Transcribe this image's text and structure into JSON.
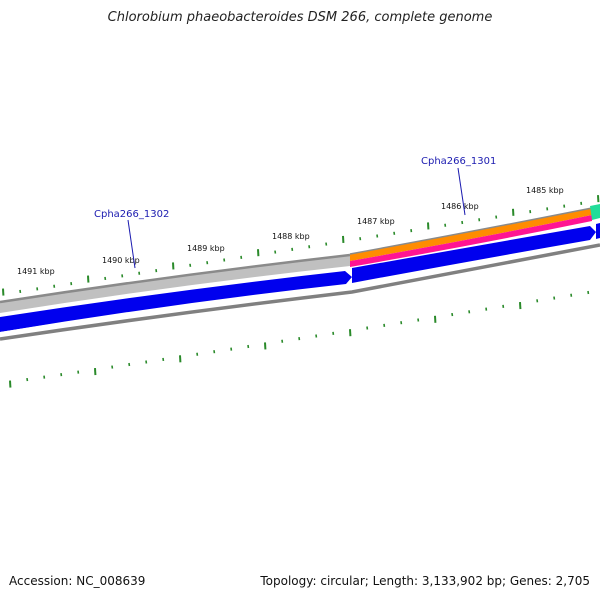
{
  "title": "Chlorobium phaeobacteroides DSM 266, complete genome",
  "footer": {
    "accession": "Accession: NC_008639",
    "summary": "Topology: circular; Length: 3,133,902 bp; Genes: 2,705"
  },
  "kbp_labels": [
    "1491 kbp",
    "1490 kbp",
    "1489 kbp",
    "1488 kbp",
    "1487 kbp",
    "1486 kbp",
    "1485 kbp"
  ],
  "gene_labels": [
    "Cpha266_1302",
    "Cpha266_1301"
  ],
  "colors": {
    "tick": "#2a8a2a",
    "backbone": "#808080",
    "gene_forward": "#0000ee",
    "gene_gray": "#c0c0c0",
    "orange": "#ff8c00",
    "magenta": "#ff1493",
    "teal": "#22dd99",
    "label": "#1b1bb0"
  }
}
